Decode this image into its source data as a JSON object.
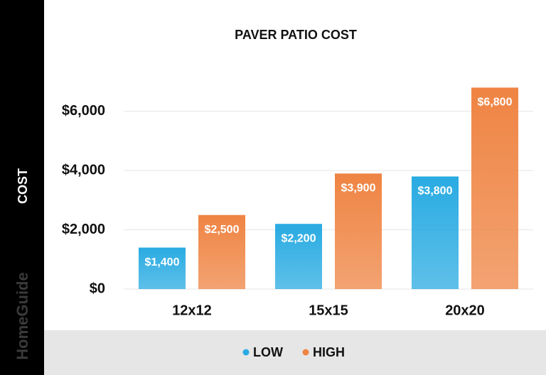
{
  "chart_data": {
    "type": "bar",
    "title": "PAVER PATIO COST",
    "y_label": "COST",
    "watermark": "HomeGuide",
    "categories": [
      "12x12",
      "15x15",
      "20x20"
    ],
    "series": [
      {
        "name": "LOW",
        "color": "#29abe2",
        "values": [
          1400,
          2200,
          3800
        ],
        "value_labels": [
          "$1,400",
          "$2,200",
          "$3,800"
        ]
      },
      {
        "name": "HIGH",
        "color": "#ef8443",
        "values": [
          2500,
          3900,
          6800
        ],
        "value_labels": [
          "$2,500",
          "$3,900",
          "$6,800"
        ]
      }
    ],
    "ylim": [
      0,
      7000
    ],
    "yticks": [
      {
        "value": 0,
        "label": "$0"
      },
      {
        "value": 2000,
        "label": "$2,000"
      },
      {
        "value": 4000,
        "label": "$4,000"
      },
      {
        "value": 6000,
        "label": "$6,000"
      }
    ],
    "grid": true,
    "legend": "bottom"
  }
}
